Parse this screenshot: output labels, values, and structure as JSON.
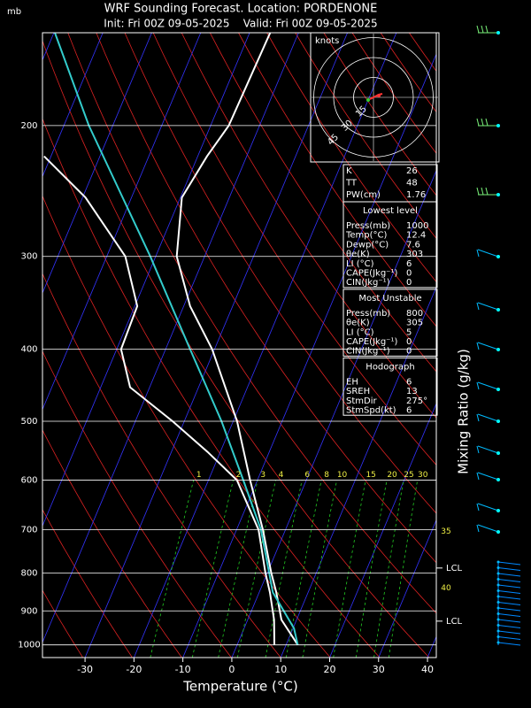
{
  "chart_data": {
    "type": "skewt",
    "title": "WRF Sounding Forecast. Location: PORDENONE",
    "subtitle": "Init: Fri 00Z 09-05-2025    Valid: Fri 00Z 09-05-2025",
    "y_unit": "mb",
    "x_label": "Temperature (°C)",
    "xlim": [
      -38.7,
      41.8
    ],
    "ylim": [
      1040,
      150
    ],
    "log_scale_y": true,
    "xticks": [
      -30,
      -20,
      -10,
      0,
      10,
      20,
      30,
      40
    ],
    "yticks": [
      1000,
      900,
      800,
      700,
      600,
      500,
      400,
      300,
      200
    ],
    "series": [
      {
        "color": "#ffffff",
        "pressure": [
          1000,
          925,
          850,
          800,
          700,
          600,
          500,
          400,
          350,
          300,
          250,
          220,
          200,
          150
        ],
        "values": [
          12.4,
          6.9,
          3.5,
          0.8,
          -4.6,
          -11.5,
          -19.2,
          -30.5,
          -38.7,
          -45.7,
          -49.7,
          -48.1,
          -46.3,
          -45.8
        ]
      },
      {
        "color": "#ffffff",
        "pressure": [
          1000,
          925,
          850,
          800,
          700,
          600,
          550,
          500,
          450,
          400,
          350,
          300,
          250,
          220
        ],
        "values": [
          7.6,
          5.4,
          2.2,
          -0.4,
          -5.5,
          -14.2,
          -22.6,
          -32.4,
          -44,
          -49.1,
          -49.5,
          -56.2,
          -69.4,
          -81.4
        ]
      },
      {
        "color": "#33cccc",
        "pressure": [
          1000,
          950,
          850,
          700,
          600,
          500,
          400,
          300,
          200,
          150
        ],
        "values": [
          12.4,
          10.2,
          2.8,
          -5.0,
          -12.9,
          -22.4,
          -35.0,
          -51.1,
          -74.9,
          -89.8
        ]
      }
    ],
    "mixing_ratio": {
      "label": "Mixing Ratio (g/kg)",
      "color": "#22cc22",
      "values": [
        1,
        2,
        3,
        4,
        6,
        8,
        10,
        15,
        20,
        25,
        30
      ]
    },
    "theta_labels": [
      {
        "value": 35,
        "pressure": 704
      },
      {
        "value": 40,
        "pressure": 839
      }
    ],
    "lcl_labels": [
      {
        "label": "LCL",
        "pressure": 788
      },
      {
        "label": "LCL",
        "pressure": 929
      }
    ],
    "hodograph": {
      "unit": "knots",
      "rings": [
        15,
        30,
        45
      ]
    },
    "indices": {
      "top": [
        [
          "K",
          26
        ],
        [
          "TT",
          48
        ],
        [
          "PW(cm)",
          1.76
        ]
      ],
      "sections": [
        {
          "title": "Lowest level",
          "rows": [
            [
              "Press(mb)",
              1000
            ],
            [
              "Temp(°C)",
              12.4
            ],
            [
              "Dewp(°C)",
              7.6
            ],
            [
              "θe(K)",
              303
            ],
            [
              "LI (°C)",
              6
            ],
            [
              "CAPE(Jkg⁻¹)",
              0
            ],
            [
              "CIN(Jkg⁻¹)",
              0
            ]
          ]
        },
        {
          "title": "Most Unstable",
          "rows": [
            [
              "Press(mb)",
              800
            ],
            [
              "θe(K)",
              305
            ],
            [
              "LI (°C)",
              5
            ],
            [
              "CAPE(Jkg⁻¹)",
              0
            ],
            [
              "CIN(Jkg⁻¹)",
              0
            ]
          ]
        },
        {
          "title": "Hodograph",
          "rows": [
            [
              "EH",
              6
            ],
            [
              "SREH",
              13
            ],
            [
              "StmDir",
              "275°"
            ],
            [
              "StmSpd(kt)",
              6
            ]
          ]
        }
      ]
    }
  }
}
